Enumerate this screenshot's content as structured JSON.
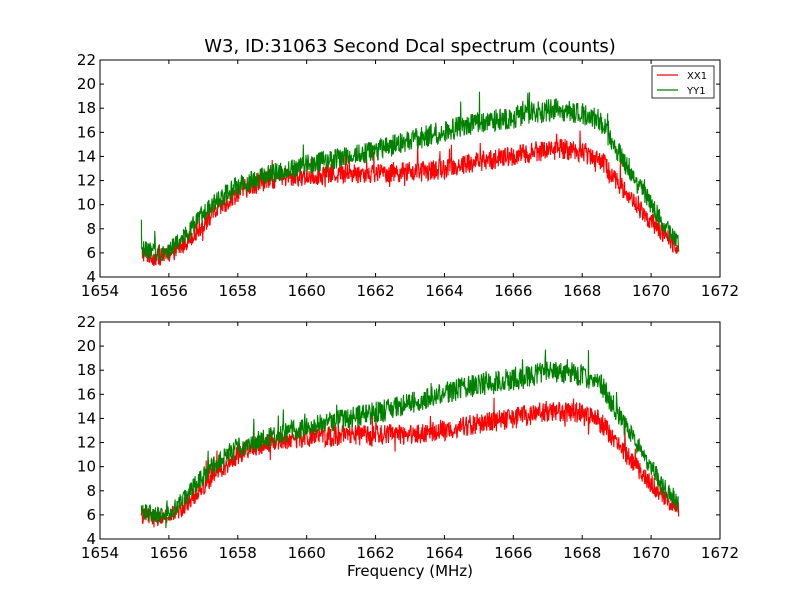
{
  "figure": {
    "title": "W3, ID:31063 Second Dcal spectrum (counts)",
    "xlabel": "Frequency (MHz)"
  },
  "chart_data": [
    {
      "type": "line",
      "title": "W3, ID:31063 Second Dcal spectrum (counts)",
      "xlabel": "",
      "ylabel": "",
      "xlim": [
        1654,
        1672
      ],
      "ylim": [
        4,
        22
      ],
      "xticks": [
        "1654",
        "1656",
        "1658",
        "1660",
        "1662",
        "1664",
        "1666",
        "1668",
        "1670",
        "1672"
      ],
      "yticks": [
        "4",
        "6",
        "8",
        "10",
        "12",
        "14",
        "16",
        "18",
        "20",
        "22"
      ],
      "legend": {
        "position": "top-right",
        "entries": [
          "XX1",
          "YY1"
        ]
      },
      "grid": false,
      "series": [
        {
          "name": "XX1",
          "color": "#ff0000",
          "noise": 1.0,
          "x": [
            1655.2,
            1655.6,
            1656.0,
            1656.4,
            1656.8,
            1657.2,
            1657.6,
            1658.0,
            1658.4,
            1658.8,
            1659.2,
            1659.6,
            1660.0,
            1660.5,
            1661.0,
            1661.5,
            1662.0,
            1662.5,
            1663.0,
            1663.5,
            1664.0,
            1664.5,
            1665.0,
            1665.5,
            1666.0,
            1666.5,
            1667.0,
            1667.5,
            1668.0,
            1668.5,
            1669.0,
            1669.5,
            1670.0,
            1670.4,
            1670.8
          ],
          "y": [
            6.0,
            5.6,
            5.8,
            6.6,
            7.8,
            9.0,
            10.0,
            11.0,
            11.6,
            12.0,
            12.2,
            12.3,
            12.4,
            12.5,
            12.6,
            12.6,
            12.6,
            12.7,
            12.7,
            12.8,
            13.0,
            13.3,
            13.6,
            13.8,
            14.0,
            14.3,
            14.6,
            14.6,
            14.4,
            13.8,
            12.0,
            10.2,
            8.6,
            7.4,
            6.4
          ]
        },
        {
          "name": "YY1",
          "color": "#008000",
          "noise": 1.0,
          "x": [
            1655.2,
            1655.6,
            1656.0,
            1656.4,
            1656.8,
            1657.2,
            1657.6,
            1658.0,
            1658.4,
            1658.8,
            1659.2,
            1659.6,
            1660.0,
            1660.5,
            1661.0,
            1661.5,
            1662.0,
            1662.5,
            1663.0,
            1663.5,
            1664.0,
            1664.5,
            1665.0,
            1665.5,
            1666.0,
            1666.5,
            1667.0,
            1667.5,
            1668.0,
            1668.5,
            1669.0,
            1669.5,
            1670.0,
            1670.4,
            1670.8
          ],
          "y": [
            6.4,
            6.0,
            6.2,
            7.2,
            8.6,
            9.8,
            10.8,
            11.6,
            12.0,
            12.4,
            12.7,
            13.0,
            13.3,
            13.6,
            13.9,
            14.2,
            14.5,
            14.9,
            15.3,
            15.7,
            16.1,
            16.5,
            16.8,
            17.0,
            17.2,
            17.5,
            17.8,
            17.8,
            17.6,
            17.0,
            14.6,
            12.2,
            10.0,
            8.2,
            6.8
          ]
        }
      ]
    },
    {
      "type": "line",
      "title": "",
      "xlabel": "Frequency (MHz)",
      "ylabel": "",
      "xlim": [
        1654,
        1672
      ],
      "ylim": [
        4,
        22
      ],
      "xticks": [
        "1654",
        "1656",
        "1658",
        "1660",
        "1662",
        "1664",
        "1666",
        "1668",
        "1670",
        "1672"
      ],
      "yticks": [
        "4",
        "6",
        "8",
        "10",
        "12",
        "14",
        "16",
        "18",
        "20",
        "22"
      ],
      "grid": false,
      "series": [
        {
          "color": "#ff0000",
          "noise": 1.0,
          "x": [
            1655.2,
            1655.6,
            1656.0,
            1656.4,
            1656.8,
            1657.2,
            1657.6,
            1658.0,
            1658.4,
            1658.8,
            1659.2,
            1659.6,
            1660.0,
            1660.5,
            1661.0,
            1661.5,
            1662.0,
            1662.5,
            1663.0,
            1663.5,
            1664.0,
            1664.5,
            1665.0,
            1665.5,
            1666.0,
            1666.5,
            1667.0,
            1667.5,
            1668.0,
            1668.5,
            1669.0,
            1669.5,
            1670.0,
            1670.4,
            1670.8
          ],
          "y": [
            6.0,
            5.6,
            5.8,
            6.6,
            7.8,
            9.0,
            10.0,
            11.0,
            11.6,
            12.0,
            12.2,
            12.3,
            12.4,
            12.5,
            12.6,
            12.6,
            12.6,
            12.7,
            12.7,
            12.8,
            13.0,
            13.3,
            13.6,
            13.8,
            14.0,
            14.3,
            14.6,
            14.6,
            14.4,
            13.8,
            12.0,
            10.2,
            8.6,
            7.4,
            6.4
          ]
        },
        {
          "color": "#008000",
          "noise": 1.0,
          "x": [
            1655.2,
            1655.6,
            1656.0,
            1656.4,
            1656.8,
            1657.2,
            1657.6,
            1658.0,
            1658.4,
            1658.8,
            1659.2,
            1659.6,
            1660.0,
            1660.5,
            1661.0,
            1661.5,
            1662.0,
            1662.5,
            1663.0,
            1663.5,
            1664.0,
            1664.5,
            1665.0,
            1665.5,
            1666.0,
            1666.5,
            1667.0,
            1667.5,
            1668.0,
            1668.5,
            1669.0,
            1669.5,
            1670.0,
            1670.4,
            1670.8
          ],
          "y": [
            6.4,
            6.0,
            6.2,
            7.2,
            8.6,
            9.8,
            10.8,
            11.6,
            12.0,
            12.4,
            12.7,
            13.0,
            13.3,
            13.6,
            13.9,
            14.2,
            14.5,
            14.9,
            15.3,
            15.7,
            16.1,
            16.5,
            16.8,
            17.0,
            17.2,
            17.5,
            17.8,
            17.8,
            17.6,
            17.0,
            14.6,
            12.2,
            10.0,
            8.2,
            6.8
          ]
        }
      ]
    }
  ]
}
